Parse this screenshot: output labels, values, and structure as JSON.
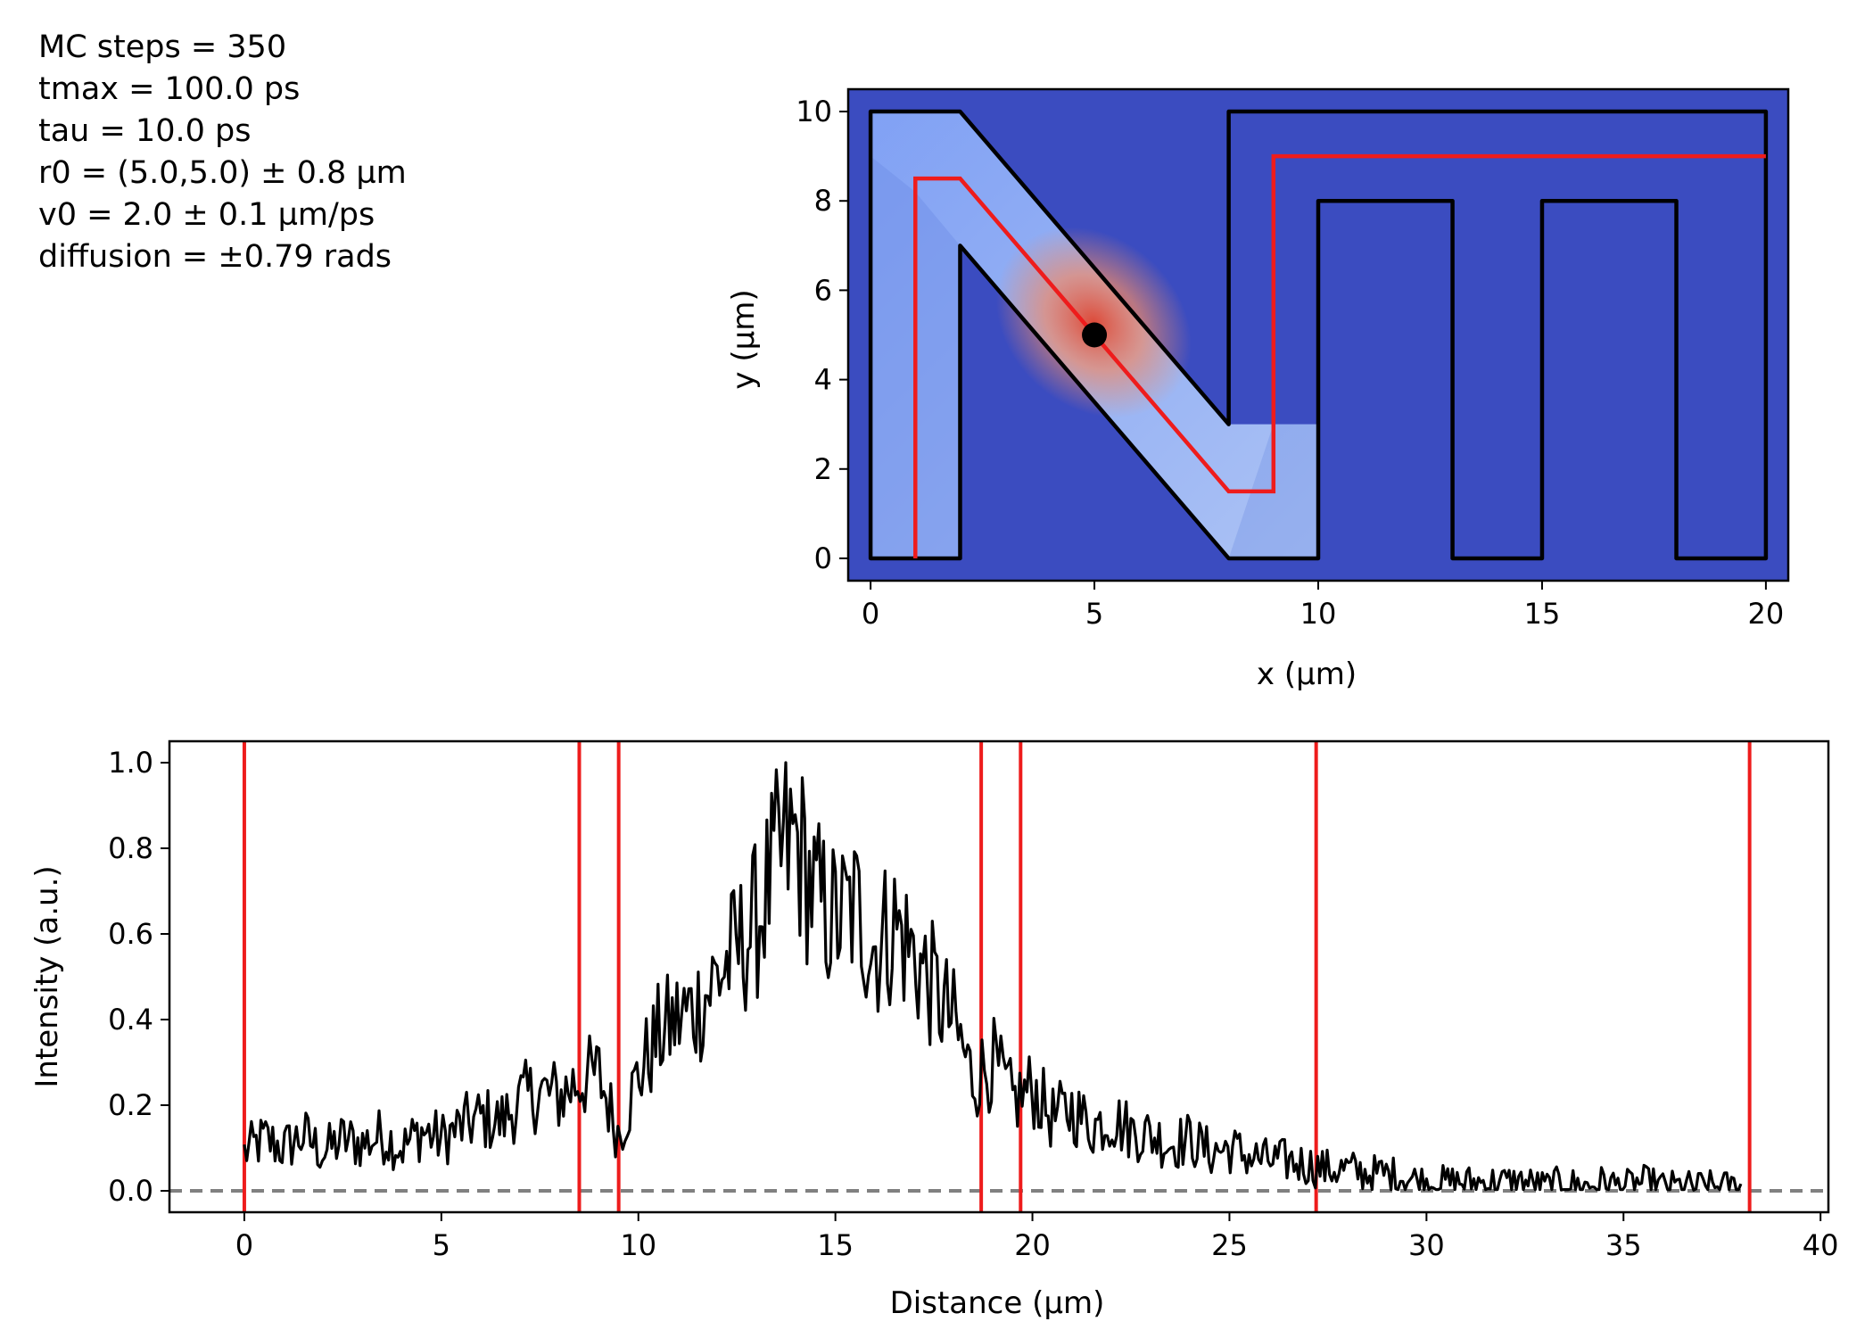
{
  "info_lines": [
    "MC steps = 350",
    "tmax = 100.0 ps",
    "tau = 10.0 ps",
    "r0 = (5.0,5.0) ± 0.8 µm",
    "v0 = 2.0 ± 0.1 µm/ps",
    "diffusion = ±0.79 rads"
  ],
  "colors": {
    "background_map": "#3b4cc0",
    "heat_cool": "#8db0fe",
    "heat_warm": "#f08a68",
    "heat_hot": "#e04530",
    "boundary": "#000000",
    "path": "#ee1c1c",
    "profile": "#000000",
    "baseline": "#808080"
  },
  "chart_data": [
    {
      "type": "heatmap",
      "title": "",
      "xlabel": "x (µm)",
      "ylabel": "y (µm)",
      "xlim": [
        -0.5,
        20.5
      ],
      "ylim": [
        -0.5,
        10.5
      ],
      "xticks": [
        0,
        5,
        10,
        15,
        20
      ],
      "yticks": [
        0,
        2,
        4,
        6,
        8,
        10
      ],
      "colormap": "coolwarm",
      "boundary_polygon": [
        [
          0,
          0
        ],
        [
          2,
          0
        ],
        [
          2,
          7
        ],
        [
          8,
          0
        ],
        [
          10,
          0
        ],
        [
          10,
          8
        ],
        [
          13,
          8
        ],
        [
          13,
          0
        ],
        [
          15,
          0
        ],
        [
          15,
          8
        ],
        [
          18,
          8
        ],
        [
          18,
          0
        ],
        [
          20,
          0
        ],
        [
          20,
          10
        ],
        [
          8,
          10
        ],
        [
          8,
          3
        ],
        [
          2,
          10
        ],
        [
          0,
          10
        ]
      ],
      "path_line": [
        [
          1,
          0
        ],
        [
          1,
          8.5
        ],
        [
          2,
          8.5
        ],
        [
          8,
          1.5
        ],
        [
          9,
          1.5
        ],
        [
          9,
          9
        ],
        [
          20,
          9
        ]
      ],
      "start_point": [
        5,
        5
      ]
    },
    {
      "type": "line",
      "title": "",
      "xlabel": "Distance (µm)",
      "ylabel": "Intensity (a.u.)",
      "xlim": [
        -1.9,
        40.2
      ],
      "ylim": [
        -0.05,
        1.05
      ],
      "xticks": [
        0,
        5,
        10,
        15,
        20,
        25,
        30,
        35,
        40
      ],
      "yticks": [
        0.0,
        0.2,
        0.4,
        0.6,
        0.8,
        1.0
      ],
      "yticklabels": [
        "0.0",
        "0.2",
        "0.4",
        "0.6",
        "0.8",
        "1.0"
      ],
      "series": [
        {
          "name": "intensity profile",
          "x": [
            0,
            0.5,
            1,
            1.5,
            2,
            2.5,
            3,
            3.5,
            4,
            4.5,
            5,
            5.5,
            6,
            6.5,
            7,
            7.5,
            8,
            8.5,
            9,
            9.5,
            10,
            10.5,
            11,
            11.5,
            12,
            12.5,
            13,
            13.5,
            14,
            14.5,
            15,
            15.5,
            16,
            16.5,
            17,
            17.5,
            18,
            18.5,
            19,
            19.5,
            20,
            20.5,
            21,
            21.5,
            22,
            22.5,
            23,
            23.5,
            24,
            24.5,
            25,
            25.5,
            26,
            26.5,
            27,
            27.5,
            28,
            28.5,
            29,
            29.5,
            30,
            30.5,
            31,
            31.5,
            32,
            32.5,
            33,
            33.5,
            34,
            34.5,
            35,
            35.5,
            36,
            36.5,
            37,
            37.5,
            38
          ],
          "values": [
            0.09,
            0.12,
            0.1,
            0.13,
            0.09,
            0.12,
            0.11,
            0.13,
            0.1,
            0.14,
            0.12,
            0.15,
            0.17,
            0.16,
            0.21,
            0.23,
            0.22,
            0.26,
            0.27,
            0.13,
            0.27,
            0.36,
            0.4,
            0.43,
            0.5,
            0.56,
            0.63,
            0.76,
            0.82,
            0.68,
            0.63,
            0.66,
            0.57,
            0.62,
            0.55,
            0.47,
            0.39,
            0.26,
            0.3,
            0.21,
            0.24,
            0.17,
            0.19,
            0.15,
            0.17,
            0.14,
            0.13,
            0.11,
            0.12,
            0.09,
            0.1,
            0.08,
            0.07,
            0.07,
            0.06,
            0.05,
            0.05,
            0.04,
            0.04,
            0.03,
            0.02,
            0.02,
            0.02,
            0.02,
            0.02,
            0.02,
            0.01,
            0.02,
            0.01,
            0.02,
            0.01,
            0.02,
            0.01,
            0.01,
            0.01,
            0.01,
            0.01
          ]
        },
        {
          "name": "zero baseline",
          "values": [
            0.0,
            0.0
          ]
        }
      ],
      "vertical_markers": [
        0,
        8.5,
        9.5,
        18.7,
        19.7,
        27.2,
        38.2
      ]
    }
  ]
}
